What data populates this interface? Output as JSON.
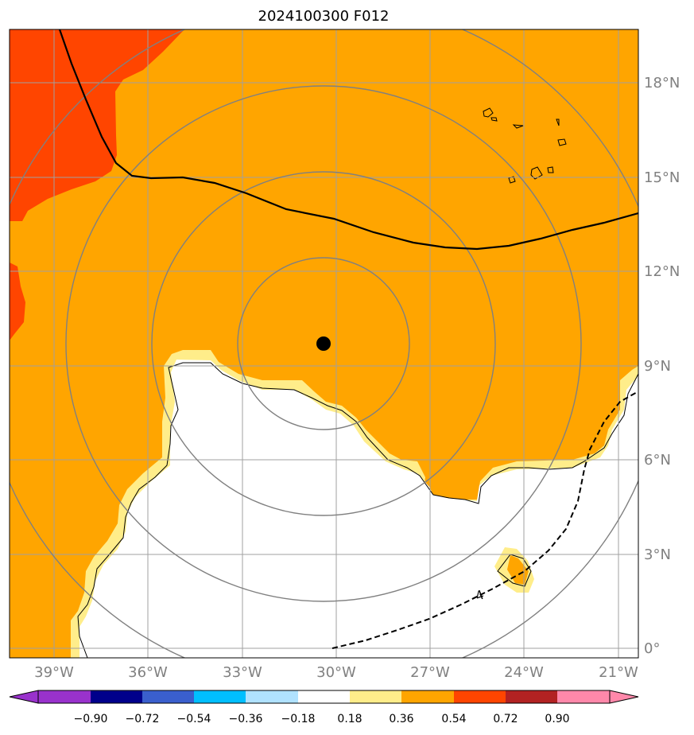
{
  "title": "2024100300 F012",
  "map": {
    "longitude_ticks": [
      "39°W",
      "36°W",
      "33°W",
      "30°W",
      "27°W",
      "24°W",
      "21°W"
    ],
    "latitude_ticks": [
      "18°N",
      "15°N",
      "12°N",
      "9°N",
      "6°N",
      "3°N",
      "0°"
    ],
    "contour_label": "4",
    "center_marker": "storm-center-dot",
    "colors": {
      "white": "#ffffff",
      "light_yellow": "#ffed8a",
      "orange": "#ffa500",
      "red_orange": "#ff4500",
      "grid": "#a0a0a0",
      "range_rings": "#808080"
    }
  },
  "colorbar": {
    "tick_labels": [
      "−0.90",
      "−0.72",
      "−0.54",
      "−0.36",
      "−0.18",
      "0.18",
      "0.36",
      "0.54",
      "0.72",
      "0.90"
    ],
    "bin_colors": [
      "#9932cc",
      "#00008b",
      "#3a5fcd",
      "#00bfff",
      "#b0e2ff",
      "#ffffff",
      "#ffed8a",
      "#ffa500",
      "#ff4500",
      "#b22222",
      "#ff88aa"
    ]
  }
}
